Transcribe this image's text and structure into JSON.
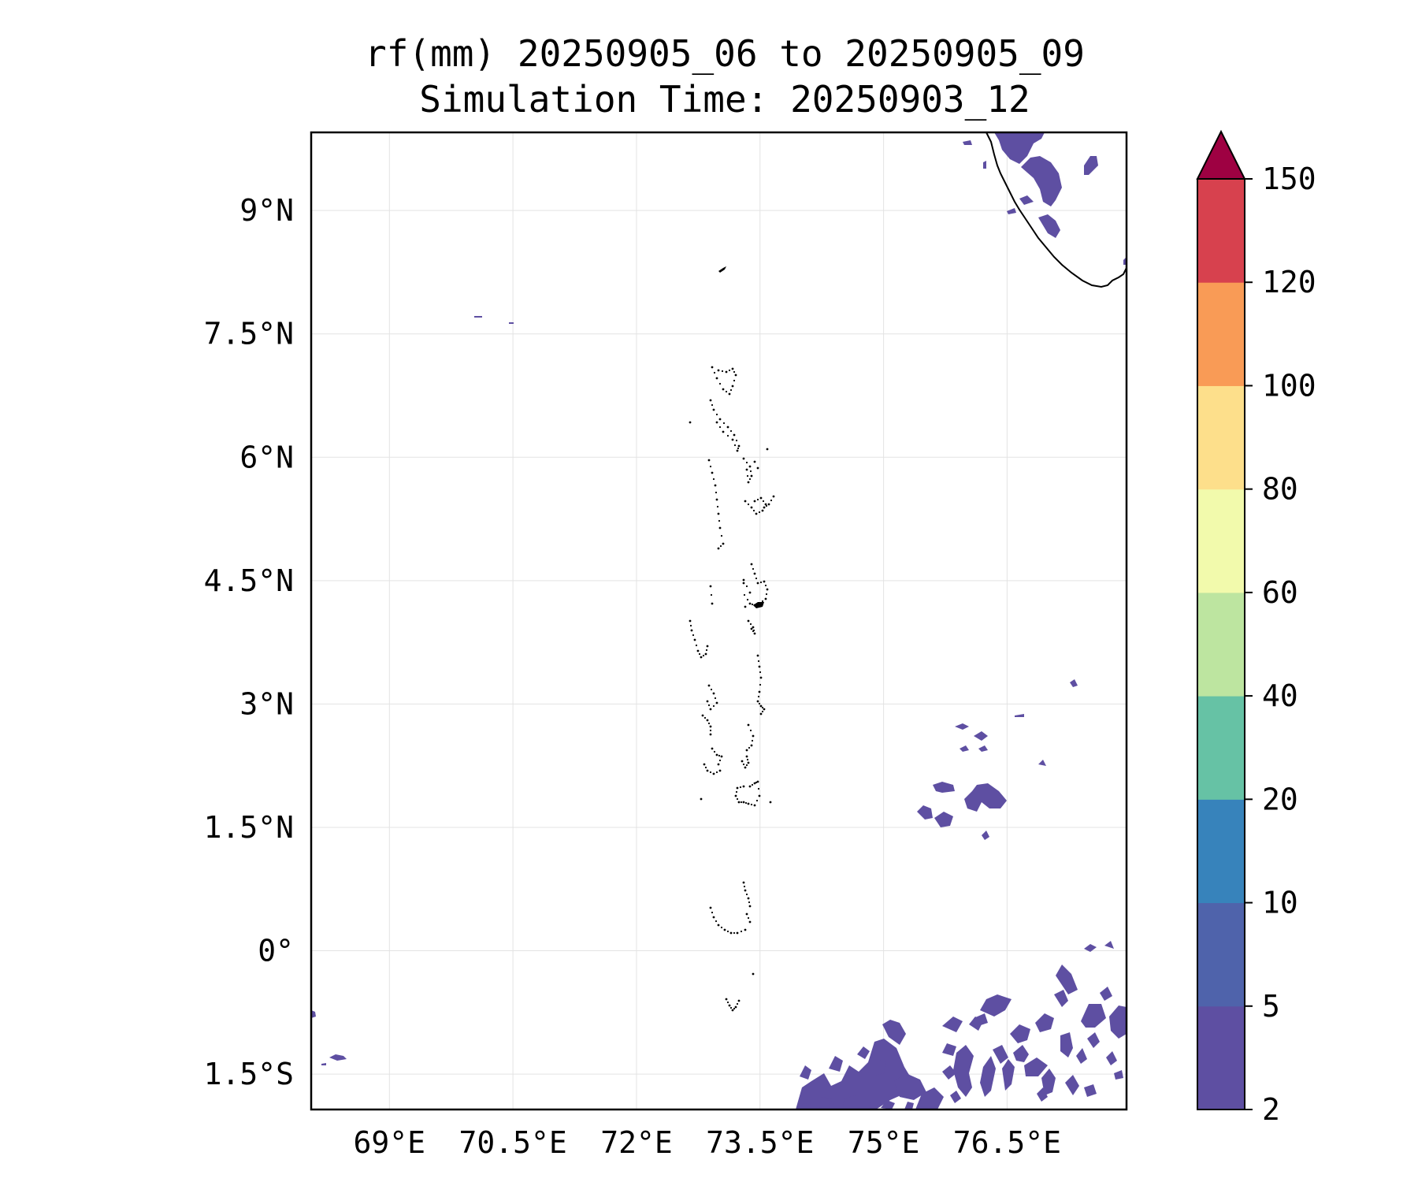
{
  "title_line1": "rf(mm) 20250905_06 to 20250905_09",
  "title_line2": "Simulation Time: 20250903_12",
  "lon_ticks": [
    {
      "label": "69°E",
      "value": 69.0
    },
    {
      "label": "70.5°E",
      "value": 70.5
    },
    {
      "label": "72°E",
      "value": 72.0
    },
    {
      "label": "73.5°E",
      "value": 73.5
    },
    {
      "label": "75°E",
      "value": 75.0
    },
    {
      "label": "76.5°E",
      "value": 76.5
    }
  ],
  "lat_ticks": [
    {
      "label": "9°N",
      "value": 9.0
    },
    {
      "label": "7.5°N",
      "value": 7.5
    },
    {
      "label": "6°N",
      "value": 6.0
    },
    {
      "label": "4.5°N",
      "value": 4.5
    },
    {
      "label": "3°N",
      "value": 3.0
    },
    {
      "label": "1.5°N",
      "value": 1.5
    },
    {
      "label": "0°",
      "value": 0.0
    },
    {
      "label": "1.5°S",
      "value": -1.5
    }
  ],
  "extent": {
    "lon_min": 68.05,
    "lon_max": 77.95,
    "lat_min": -1.93,
    "lat_max": 9.95
  },
  "colorbar": {
    "levels": [
      2,
      5,
      10,
      20,
      40,
      60,
      80,
      100,
      120,
      150
    ],
    "labels": [
      "2",
      "5",
      "10",
      "20",
      "40",
      "60",
      "80",
      "100",
      "120",
      "150"
    ],
    "colors": [
      "#5e4fa2",
      "#4f63ab",
      "#3783bb",
      "#66c2a5",
      "#bde5a0",
      "#f2faac",
      "#fddf8b",
      "#f99b56",
      "#d7414e"
    ],
    "extend_color": "#9e0142"
  },
  "rain_color": "#5e4fa2"
}
